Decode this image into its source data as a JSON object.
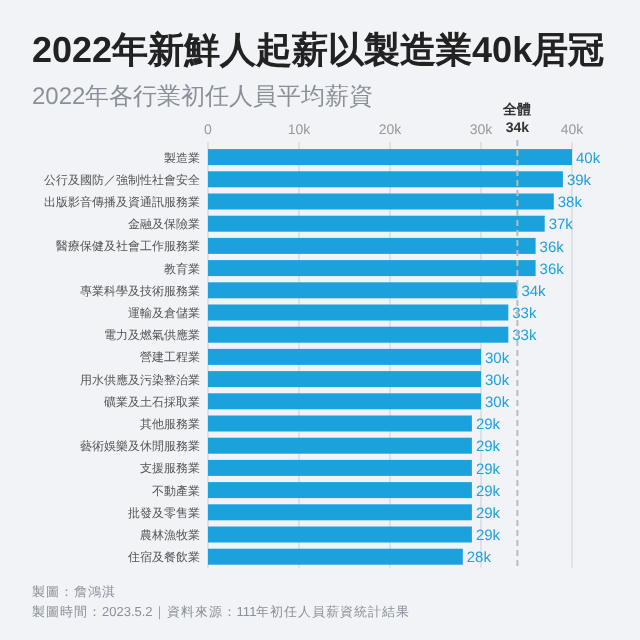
{
  "chart_data": {
    "type": "bar",
    "orientation": "horizontal",
    "title": "2022年新鮮人起薪以製造業40k居冠",
    "subtitle": "2022年各行業初任人員平均薪資",
    "categories": [
      "製造業",
      "公行及國防／強制性社會安全",
      "出版影音傳播及資通訊服務業",
      "金融及保險業",
      "醫療保健及社會工作服務業",
      "教育業",
      "專業科學及技術服務業",
      "運輸及倉儲業",
      "電力及燃氣供應業",
      "營建工程業",
      "用水供應及污染整治業",
      "礦業及土石採取業",
      "其他服務業",
      "藝術娛樂及休閒服務業",
      "支援服務業",
      "不動產業",
      "批發及零售業",
      "農林漁牧業",
      "住宿及餐飲業"
    ],
    "values": [
      40,
      39,
      38,
      37,
      36,
      36,
      34,
      33,
      33,
      30,
      30,
      30,
      29,
      29,
      29,
      29,
      29,
      29,
      28
    ],
    "value_labels": [
      "40k",
      "39k",
      "38k",
      "37k",
      "36k",
      "36k",
      "34k",
      "33k",
      "33k",
      "30k",
      "30k",
      "30k",
      "29k",
      "29k",
      "29k",
      "29k",
      "29k",
      "29k",
      "28k"
    ],
    "color": "#1ba1dc",
    "xlim": [
      0,
      40
    ],
    "xticks": [
      0,
      {
        "value": 10,
        "label": "10k"
      },
      {
        "value": 20,
        "label": "20k"
      },
      {
        "value": 30,
        "label": "30k"
      },
      {
        "value": 40,
        "label": "40k"
      }
    ],
    "grid": "x",
    "ref_lines": [
      {
        "axis": "x",
        "value": 34,
        "label": "全體 34k",
        "line_style": "dashed",
        "color": "#bbbbbb"
      }
    ],
    "annotations": [
      "製圖：詹鴻淇",
      "製圖時間：2023.5.2｜資料來源：111年初任人員薪資統計結果"
    ]
  }
}
